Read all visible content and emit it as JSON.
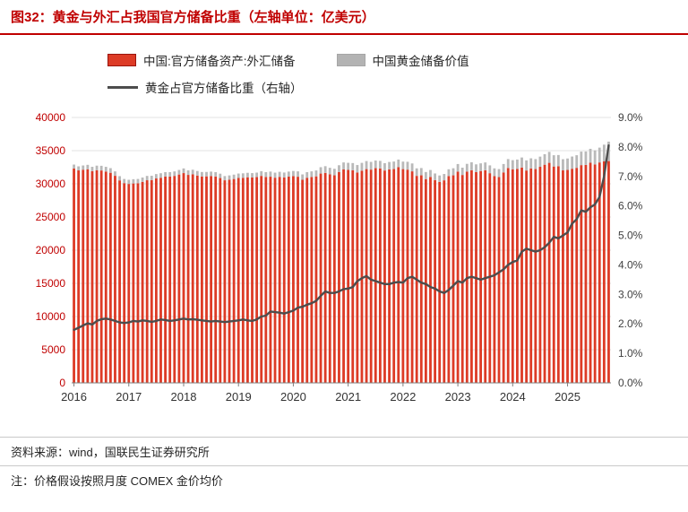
{
  "title": "图32：黄金与外汇占我国官方储备比重（左轴单位：亿美元）",
  "legend": [
    {
      "label": "中国:官方储备资产:外汇储备",
      "type": "bar",
      "color": "#dd3b26",
      "border": "#99150d"
    },
    {
      "label": "中国黄金储备价值",
      "type": "bar",
      "color": "#b9b9b9"
    },
    {
      "label": "黄金占官方储备比重（右轴）",
      "type": "line",
      "color": "#4d4d4d"
    }
  ],
  "footer": {
    "source": "资料来源：wind，国联民生证券研究所",
    "note": "注：价格假设按照月度 COMEX 金价均价"
  },
  "colors": {
    "title_red": "#c00000",
    "fx_bar": "#dd3b26",
    "gold_bar": "#b9b9b9",
    "ratio_line": "#4d4d4d",
    "gridline": "#e3e3e3",
    "axis_line": "#7f7f7f"
  },
  "chart_data": {
    "type": "bar",
    "subtype": "stacked-bar-with-line-combo",
    "frequency": "monthly",
    "x_range": "2016-01 to 2025-10",
    "points": 118,
    "x_tick_labels": [
      "2016",
      "2017",
      "2018",
      "2019",
      "2020",
      "2021",
      "2022",
      "2023",
      "2024",
      "2025"
    ],
    "left_axis": {
      "min": 0,
      "max": 40000,
      "step": 5000,
      "unit": "亿美元",
      "label_color": "#c00000"
    },
    "right_axis": {
      "min": 0,
      "max": 9,
      "step": 1,
      "format": "percent",
      "label_color": "#404040"
    },
    "grid": "horizontal",
    "legend_position": "top",
    "series": [
      {
        "name": "中国:官方储备资产:外汇储备",
        "axis": "left",
        "type": "bar",
        "color": "#dd3b26",
        "values": [
          32309,
          32023,
          32126,
          32197,
          31917,
          32052,
          32011,
          31852,
          31664,
          31207,
          30516,
          30105,
          29982,
          30051,
          30091,
          30295,
          30536,
          30568,
          30807,
          30915,
          31085,
          31092,
          31193,
          31399,
          31615,
          31345,
          31428,
          31249,
          31106,
          31121,
          31179,
          31097,
          30870,
          30531,
          30617,
          30727,
          30879,
          30902,
          30988,
          30950,
          31010,
          31192,
          31037,
          31072,
          30924,
          31052,
          30956,
          31079,
          31155,
          31067,
          30606,
          30915,
          31017,
          31123,
          31544,
          31646,
          31426,
          31280,
          31785,
          32165,
          32107,
          32050,
          31700,
          31982,
          32218,
          32140,
          32359,
          32321,
          32006,
          32176,
          32224,
          32502,
          32216,
          32138,
          31880,
          31197,
          31278,
          30713,
          31041,
          30549,
          30290,
          30524,
          31175,
          31277,
          31845,
          31332,
          31839,
          32048,
          31765,
          31930,
          32043,
          31601,
          31151,
          31012,
          31718,
          32380,
          32193,
          32258,
          32457,
          32008,
          32320,
          32224,
          32564,
          32882,
          33164,
          32610,
          32659,
          32024,
          32090,
          32272,
          32407,
          32817,
          32853,
          33174,
          32922,
          33222,
          33387,
          33433
        ]
      },
      {
        "name": "中国黄金储备价值",
        "axis": "left",
        "type": "bar",
        "stacked_on": "中国:官方储备资产:外汇储备",
        "color": "#b9b9b9",
        "values": [
          592,
          610,
          639,
          664,
          645,
          688,
          707,
          710,
          696,
          669,
          639,
          624,
          627,
          645,
          639,
          656,
          655,
          646,
          661,
          679,
          677,
          667,
          676,
          690,
          705,
          689,
          694,
          683,
          674,
          668,
          662,
          667,
          656,
          642,
          650,
          659,
          669,
          679,
          671,
          664,
          681,
          718,
          724,
          771,
          760,
          757,
          745,
          764,
          782,
          813,
          810,
          842,
          861,
          890,
          959,
          1012,
          989,
          984,
          1017,
          1056,
          1061,
          1077,
          1133,
          1177,
          1210,
          1166,
          1156,
          1138,
          1109,
          1115,
          1134,
          1151,
          1134,
          1183,
          1190,
          1132,
          1101,
          1064,
          1043,
          1010,
          969,
          960,
          1014,
          1067,
          1138,
          1103,
          1172,
          1197,
          1169,
          1158,
          1180,
          1180,
          1180,
          1208,
          1270,
          1349,
          1376,
          1397,
          1512,
          1526,
          1523,
          1501,
          1534,
          1586,
          1654,
          1698,
          1683,
          1685,
          1725,
          1842,
          1904,
          2039,
          2023,
          2099,
          2120,
          2234,
          2513,
          2927
        ]
      },
      {
        "name": "黄金占官方储备比重（右轴）",
        "axis": "right",
        "type": "line",
        "color": "#4d4d4d",
        "values": [
          1.8,
          1.87,
          1.95,
          2.02,
          1.98,
          2.1,
          2.16,
          2.18,
          2.15,
          2.1,
          2.05,
          2.03,
          2.05,
          2.1,
          2.08,
          2.12,
          2.1,
          2.07,
          2.1,
          2.15,
          2.13,
          2.1,
          2.12,
          2.15,
          2.18,
          2.15,
          2.16,
          2.14,
          2.12,
          2.1,
          2.08,
          2.1,
          2.08,
          2.06,
          2.08,
          2.1,
          2.12,
          2.15,
          2.12,
          2.1,
          2.15,
          2.25,
          2.28,
          2.42,
          2.4,
          2.38,
          2.35,
          2.4,
          2.45,
          2.55,
          2.58,
          2.65,
          2.7,
          2.78,
          2.95,
          3.1,
          3.05,
          3.05,
          3.1,
          3.18,
          3.2,
          3.25,
          3.45,
          3.55,
          3.62,
          3.5,
          3.45,
          3.4,
          3.35,
          3.35,
          3.4,
          3.42,
          3.4,
          3.55,
          3.6,
          3.5,
          3.4,
          3.35,
          3.25,
          3.2,
          3.1,
          3.05,
          3.15,
          3.3,
          3.45,
          3.4,
          3.55,
          3.6,
          3.55,
          3.5,
          3.55,
          3.6,
          3.65,
          3.75,
          3.85,
          4.0,
          4.1,
          4.15,
          4.45,
          4.55,
          4.5,
          4.45,
          4.5,
          4.6,
          4.75,
          4.95,
          4.9,
          5.0,
          5.1,
          5.4,
          5.55,
          5.85,
          5.8,
          5.95,
          6.05,
          6.3,
          7.0,
          8.05
        ]
      }
    ]
  }
}
